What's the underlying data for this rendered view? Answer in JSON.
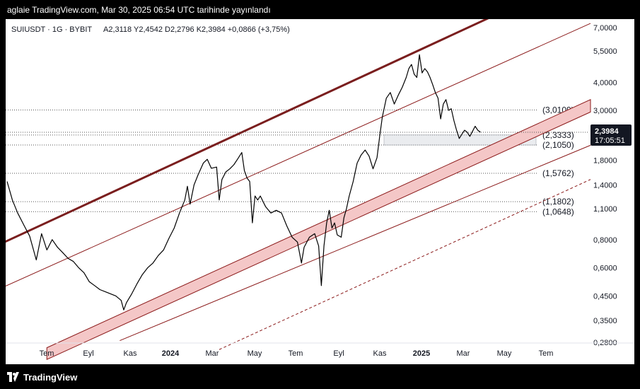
{
  "header": {
    "publish_line": "aglaie TradingView.com, Mar 30, 2025 06:54 UTC tarihinde yayınlandı"
  },
  "footer": {
    "brand": "TradingView"
  },
  "chart_data": {
    "type": "line",
    "title": "SUIUSDT · 1G · BYBIT",
    "ohlc_text": "A2,3118  Y2,4542  D2,2796  K2,3984  +0,0866 (+3,75%)",
    "y_scale": "log",
    "ylim": [
      0.28,
      7.2
    ],
    "y_ticks": [
      "7,0000",
      "5,5000",
      "4,0000",
      "3,0000",
      "1,8000",
      "1,4000",
      "1,1000",
      "0,8000",
      "0,6000",
      "0,4500",
      "0,3500",
      "0,2800"
    ],
    "x_ticks": [
      "Tem",
      "Eyl",
      "Kas",
      "2024",
      "Mar",
      "May",
      "Tem",
      "Eyl",
      "Kas",
      "2025",
      "Mar",
      "May",
      "Tem"
    ],
    "levels": [
      {
        "label": "(3,0109)",
        "value": 3.0109
      },
      {
        "label": "(2,3333)",
        "value": 2.3333
      },
      {
        "label": "(2,1050)",
        "value": 2.105
      },
      {
        "label": "(1,5762)",
        "value": 1.5762
      },
      {
        "label": "(1,1802)",
        "value": 1.1802
      },
      {
        "label": "(1,0648)",
        "value": 1.0648
      }
    ],
    "price_badge": {
      "price": "2,3984",
      "countdown": "17:05:51"
    },
    "series": [
      {
        "values": [
          [
            0,
            1.45
          ],
          [
            4,
            1.2
          ],
          [
            8,
            1.05
          ],
          [
            13,
            0.92
          ],
          [
            17,
            0.83
          ],
          [
            22,
            0.65
          ],
          [
            26,
            0.85
          ],
          [
            30,
            0.72
          ],
          [
            34,
            0.8
          ],
          [
            38,
            0.74
          ],
          [
            42,
            0.7
          ],
          [
            46,
            0.66
          ],
          [
            50,
            0.64
          ],
          [
            54,
            0.6
          ],
          [
            58,
            0.57
          ],
          [
            62,
            0.52
          ],
          [
            66,
            0.5
          ],
          [
            70,
            0.48
          ],
          [
            74,
            0.47
          ],
          [
            78,
            0.46
          ],
          [
            82,
            0.45
          ],
          [
            86,
            0.43
          ],
          [
            88,
            0.39
          ],
          [
            90,
            0.42
          ],
          [
            94,
            0.46
          ],
          [
            98,
            0.51
          ],
          [
            102,
            0.56
          ],
          [
            106,
            0.6
          ],
          [
            110,
            0.63
          ],
          [
            114,
            0.68
          ],
          [
            118,
            0.72
          ],
          [
            122,
            0.81
          ],
          [
            126,
            0.9
          ],
          [
            130,
            1.05
          ],
          [
            134,
            1.2
          ],
          [
            136,
            1.38
          ],
          [
            138,
            1.15
          ],
          [
            141,
            1.4
          ],
          [
            144,
            1.55
          ],
          [
            148,
            1.75
          ],
          [
            151,
            1.82
          ],
          [
            154,
            1.66
          ],
          [
            158,
            1.68
          ],
          [
            160,
            1.2
          ],
          [
            162,
            1.48
          ],
          [
            165,
            1.6
          ],
          [
            168,
            1.65
          ],
          [
            171,
            1.72
          ],
          [
            174,
            1.83
          ],
          [
            177,
            1.95
          ],
          [
            179,
            1.62
          ],
          [
            181,
            1.5
          ],
          [
            183,
            1.45
          ],
          [
            185,
            0.95
          ],
          [
            187,
            1.25
          ],
          [
            189,
            1.2
          ],
          [
            191,
            1.25
          ],
          [
            195,
            1.12
          ],
          [
            199,
            1.05
          ],
          [
            203,
            1.08
          ],
          [
            207,
            1.05
          ],
          [
            211,
            0.92
          ],
          [
            215,
            0.82
          ],
          [
            219,
            0.78
          ],
          [
            222,
            0.63
          ],
          [
            224,
            0.74
          ],
          [
            228,
            0.82
          ],
          [
            232,
            0.85
          ],
          [
            235,
            0.75
          ],
          [
            237,
            0.5
          ],
          [
            239,
            0.75
          ],
          [
            241,
            0.95
          ],
          [
            243,
            1.08
          ],
          [
            245,
            0.9
          ],
          [
            247,
            0.95
          ],
          [
            249,
            0.84
          ],
          [
            252,
            0.82
          ],
          [
            254,
            1.0
          ],
          [
            256,
            1.1
          ],
          [
            258,
            1.25
          ],
          [
            261,
            1.45
          ],
          [
            264,
            1.75
          ],
          [
            267,
            1.9
          ],
          [
            270,
            2.0
          ],
          [
            273,
            1.88
          ],
          [
            276,
            1.65
          ],
          [
            279,
            1.85
          ],
          [
            281,
            2.3
          ],
          [
            283,
            2.8
          ],
          [
            286,
            3.4
          ],
          [
            289,
            3.6
          ],
          [
            292,
            3.2
          ],
          [
            295,
            3.5
          ],
          [
            298,
            3.8
          ],
          [
            301,
            4.2
          ],
          [
            303,
            4.6
          ],
          [
            305,
            4.8
          ],
          [
            307,
            4.35
          ],
          [
            309,
            4.2
          ],
          [
            311,
            5.3
          ],
          [
            313,
            4.4
          ],
          [
            315,
            4.6
          ],
          [
            317,
            4.45
          ],
          [
            319,
            4.2
          ],
          [
            321,
            3.9
          ],
          [
            323,
            3.6
          ],
          [
            325,
            3.4
          ],
          [
            327,
            2.75
          ],
          [
            329,
            3.2
          ],
          [
            331,
            3.35
          ],
          [
            333,
            3.0
          ],
          [
            335,
            3.05
          ],
          [
            337,
            2.7
          ],
          [
            339,
            2.45
          ],
          [
            341,
            2.25
          ],
          [
            343,
            2.35
          ],
          [
            345,
            2.45
          ],
          [
            347,
            2.4
          ],
          [
            349,
            2.3
          ],
          [
            351,
            2.42
          ],
          [
            353,
            2.55
          ],
          [
            355,
            2.45
          ],
          [
            357,
            2.4
          ]
        ]
      }
    ]
  }
}
